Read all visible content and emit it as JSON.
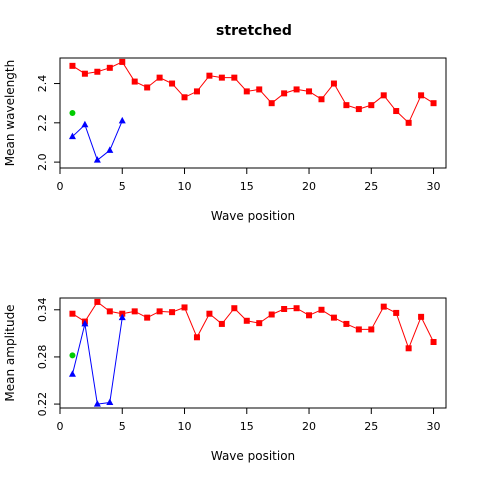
{
  "title": "stretched",
  "chart_data": [
    {
      "type": "line",
      "xlabel": "Wave position",
      "ylabel": "Mean wavelength",
      "xlim": [
        0,
        31
      ],
      "ylim": [
        1.97,
        2.53
      ],
      "xticks": [
        "0",
        "5",
        "10",
        "15",
        "20",
        "25",
        "30"
      ],
      "yticks": [
        "2.0",
        "2.2",
        "2.4"
      ],
      "xtick_values": [
        0,
        5,
        10,
        15,
        20,
        25,
        30
      ],
      "ytick_values": [
        2.0,
        2.2,
        2.4
      ],
      "series": [
        {
          "color": "#ff0000",
          "marker": "square",
          "x": [
            1,
            2,
            3,
            4,
            5,
            6,
            7,
            8,
            9,
            10,
            11,
            12,
            13,
            14,
            15,
            16,
            17,
            18,
            19,
            20,
            21,
            22,
            23,
            24,
            25,
            26,
            27,
            28,
            29,
            30
          ],
          "values": [
            2.49,
            2.45,
            2.46,
            2.48,
            2.51,
            2.41,
            2.38,
            2.43,
            2.4,
            2.33,
            2.36,
            2.44,
            2.43,
            2.43,
            2.36,
            2.37,
            2.3,
            2.35,
            2.37,
            2.36,
            2.32,
            2.4,
            2.29,
            2.27,
            2.29,
            2.34,
            2.26,
            2.2,
            2.34,
            2.3
          ]
        },
        {
          "color": "#0000ff",
          "marker": "triangle",
          "x": [
            1,
            2,
            3,
            4,
            5
          ],
          "values": [
            2.13,
            2.19,
            2.01,
            2.06,
            2.21
          ]
        },
        {
          "color": "#00cc00",
          "marker": "circle",
          "x": [
            1
          ],
          "values": [
            2.25
          ]
        }
      ]
    },
    {
      "type": "line",
      "xlabel": "Wave position",
      "ylabel": "Mean amplitude",
      "xlim": [
        0,
        31
      ],
      "ylim": [
        0.215,
        0.355
      ],
      "xticks": [
        "0",
        "5",
        "10",
        "15",
        "20",
        "25",
        "30"
      ],
      "yticks": [
        "0.22",
        "0.28",
        "0.34"
      ],
      "xtick_values": [
        0,
        5,
        10,
        15,
        20,
        25,
        30
      ],
      "ytick_values": [
        0.22,
        0.28,
        0.34
      ],
      "series": [
        {
          "color": "#ff0000",
          "marker": "square",
          "x": [
            1,
            2,
            3,
            4,
            5,
            6,
            7,
            8,
            9,
            10,
            11,
            12,
            13,
            14,
            15,
            16,
            17,
            18,
            19,
            20,
            21,
            22,
            23,
            24,
            25,
            26,
            27,
            28,
            29,
            30
          ],
          "values": [
            0.335,
            0.325,
            0.35,
            0.338,
            0.335,
            0.338,
            0.33,
            0.338,
            0.337,
            0.343,
            0.305,
            0.335,
            0.322,
            0.342,
            0.326,
            0.323,
            0.334,
            0.341,
            0.342,
            0.333,
            0.34,
            0.33,
            0.322,
            0.315,
            0.315,
            0.344,
            0.336,
            0.291,
            0.331,
            0.299
          ]
        },
        {
          "color": "#0000ff",
          "marker": "triangle",
          "x": [
            1,
            2,
            3,
            4,
            5
          ],
          "values": [
            0.258,
            0.322,
            0.22,
            0.222,
            0.33
          ]
        },
        {
          "color": "#00cc00",
          "marker": "circle",
          "x": [
            1
          ],
          "values": [
            0.282
          ]
        }
      ]
    }
  ]
}
